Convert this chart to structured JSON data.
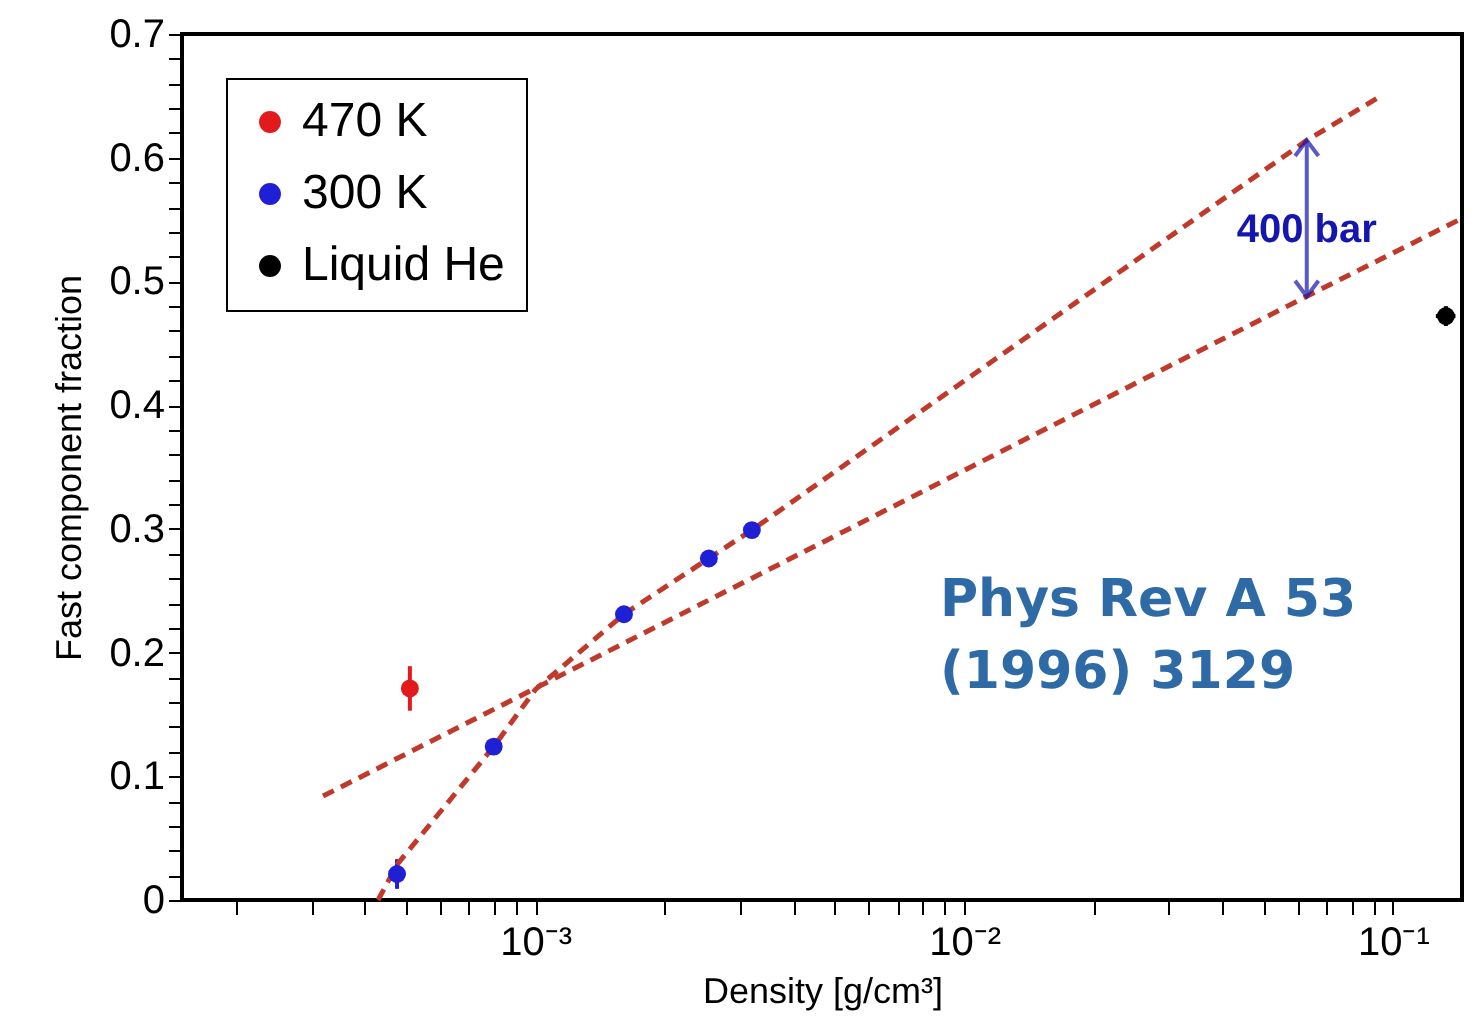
{
  "chart_data": {
    "type": "scatter",
    "xlabel": "Density [g/cm³]",
    "ylabel": "Fast component fraction",
    "log": "x",
    "grid": false,
    "legend": "top left",
    "marker": "circle",
    "xlim": [
      0.00015,
      0.145
    ],
    "ylim": [
      0,
      0.7
    ],
    "xticks": [
      {
        "value": 0.0002,
        "label": null
      },
      {
        "value": 0.0003,
        "label": null
      },
      {
        "value": 0.0004,
        "label": null
      },
      {
        "value": 0.0005,
        "label": null
      },
      {
        "value": 0.0006,
        "label": null
      },
      {
        "value": 0.0007,
        "label": null
      },
      {
        "value": 0.0008,
        "label": null
      },
      {
        "value": 0.0009,
        "label": null
      },
      {
        "value": 0.001,
        "label": "10⁻³"
      },
      {
        "value": 0.002,
        "label": null
      },
      {
        "value": 0.003,
        "label": null
      },
      {
        "value": 0.004,
        "label": null
      },
      {
        "value": 0.005,
        "label": null
      },
      {
        "value": 0.006,
        "label": null
      },
      {
        "value": 0.007,
        "label": null
      },
      {
        "value": 0.008,
        "label": null
      },
      {
        "value": 0.009,
        "label": null
      },
      {
        "value": 0.01,
        "label": "10⁻²"
      },
      {
        "value": 0.02,
        "label": null
      },
      {
        "value": 0.03,
        "label": null
      },
      {
        "value": 0.04,
        "label": null
      },
      {
        "value": 0.05,
        "label": null
      },
      {
        "value": 0.06,
        "label": null
      },
      {
        "value": 0.07,
        "label": null
      },
      {
        "value": 0.08,
        "label": null
      },
      {
        "value": 0.09,
        "label": null
      },
      {
        "value": 0.1,
        "label": "10⁻¹"
      }
    ],
    "yticks": [
      0,
      {
        "value": 0.02,
        "label": null
      },
      {
        "value": 0.04,
        "label": null
      },
      {
        "value": 0.06,
        "label": null
      },
      {
        "value": 0.08,
        "label": null
      },
      0.1,
      {
        "value": 0.12,
        "label": null
      },
      {
        "value": 0.14,
        "label": null
      },
      {
        "value": 0.16,
        "label": null
      },
      {
        "value": 0.18,
        "label": null
      },
      0.2,
      {
        "value": 0.22,
        "label": null
      },
      {
        "value": 0.24,
        "label": null
      },
      {
        "value": 0.26,
        "label": null
      },
      {
        "value": 0.28,
        "label": null
      },
      0.3,
      {
        "value": 0.32,
        "label": null
      },
      {
        "value": 0.34,
        "label": null
      },
      {
        "value": 0.36,
        "label": null
      },
      {
        "value": 0.38,
        "label": null
      },
      0.4,
      {
        "value": 0.42,
        "label": null
      },
      {
        "value": 0.44,
        "label": null
      },
      {
        "value": 0.46,
        "label": null
      },
      {
        "value": 0.48,
        "label": null
      },
      0.5,
      {
        "value": 0.52,
        "label": null
      },
      {
        "value": 0.54,
        "label": null
      },
      {
        "value": 0.56,
        "label": null
      },
      {
        "value": 0.58,
        "label": null
      },
      0.6,
      {
        "value": 0.62,
        "label": null
      },
      {
        "value": 0.64,
        "label": null
      },
      {
        "value": 0.66,
        "label": null
      },
      {
        "value": 0.68,
        "label": null
      },
      0.7
    ],
    "series": [
      {
        "name": "470 K",
        "color": "#e31a1c",
        "x": [
          0.00051
        ],
        "values": [
          0.171
        ],
        "errors": [
          0.018
        ]
      },
      {
        "name": "300 K",
        "color": "#1f1fd6",
        "x": [
          0.000476,
          0.0008,
          0.00161,
          0.00254,
          0.0032
        ],
        "values": [
          0.021,
          0.124,
          0.231,
          0.276,
          0.299
        ],
        "errors": [
          0.012,
          0.005,
          0.004,
          0.005,
          0.005
        ]
      },
      {
        "name": "Liquid He",
        "color": "#000000",
        "x": [
          0.133
        ],
        "values": [
          0.472
        ],
        "errors": [
          0.008
        ],
        "xerrors": [
          0.007
        ]
      },
      {
        "type": "line",
        "color": "#c0392b",
        "line_style": "dashed",
        "marker": "none",
        "x": [
          0.00043,
          0.000477,
          0.0008,
          0.001,
          0.00161,
          0.0032,
          0.063,
          0.095
        ],
        "values": [
          0,
          0.029,
          0.124,
          0.17,
          0.231,
          0.299,
          0.614,
          0.651
        ]
      },
      {
        "type": "line",
        "color": "#c0392b",
        "line_style": "dashed",
        "marker": "none",
        "x": [
          0.00032,
          0.063,
          0.145
        ],
        "values": [
          0.084,
          0.488,
          0.551
        ]
      }
    ],
    "annotations": [
      {
        "text": "400 bar",
        "x": 0.063,
        "y": 0.614
      },
      "Phys Rev A 53 (1996) 3129"
    ]
  }
}
